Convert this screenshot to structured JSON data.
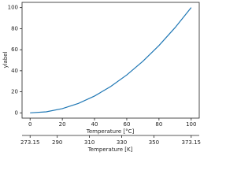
{
  "chart_data": {
    "type": "line",
    "x": [
      0,
      10,
      20,
      30,
      40,
      50,
      60,
      70,
      80,
      90,
      100
    ],
    "series": [
      {
        "color": "#1f77b4",
        "values": [
          0,
          1,
          4,
          9,
          16,
          25,
          36,
          49,
          64,
          81,
          100
        ]
      }
    ],
    "xlim": [
      -5,
      105
    ],
    "xticks": [
      0,
      20,
      40,
      60,
      80,
      100
    ],
    "xlabel": "Temperature [°C]",
    "ylim": [
      -5,
      105
    ],
    "yticks": [
      0,
      20,
      40,
      60,
      80,
      100
    ],
    "ylabel": "ylabel",
    "x2lim": [
      268.15,
      378.15
    ],
    "x2ticks": [
      273.15,
      290,
      310,
      330,
      350,
      373.15
    ],
    "x2label": "Temperature [K]",
    "grid": false
  }
}
